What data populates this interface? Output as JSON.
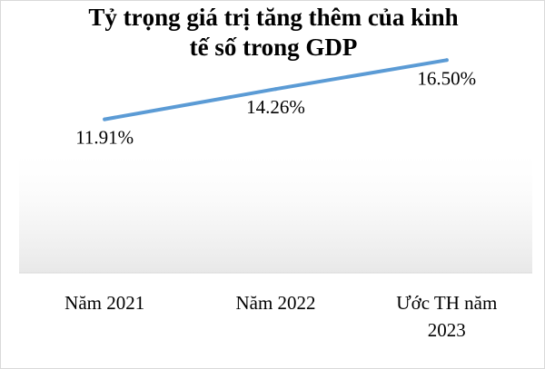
{
  "chart_data": {
    "type": "line",
    "title_lines": [
      "Tỷ trọng giá trị tăng thêm của kinh",
      "tế số trong GDP"
    ],
    "categories": [
      "Năm 2021",
      "Năm 2022",
      "Ước TH năm 2023"
    ],
    "category_lines": [
      [
        "Năm 2021"
      ],
      [
        "Năm 2022"
      ],
      [
        "Ước TH năm",
        "2023"
      ]
    ],
    "series": [
      {
        "values": [
          11.91,
          14.26,
          16.5
        ],
        "labels": [
          "11.91%",
          "14.26%",
          "16.50%"
        ],
        "color": "#5b9bd5"
      }
    ],
    "xlabel": "",
    "ylabel": "",
    "ylim": [
      0,
      18
    ],
    "grid": false,
    "legend": "none"
  }
}
